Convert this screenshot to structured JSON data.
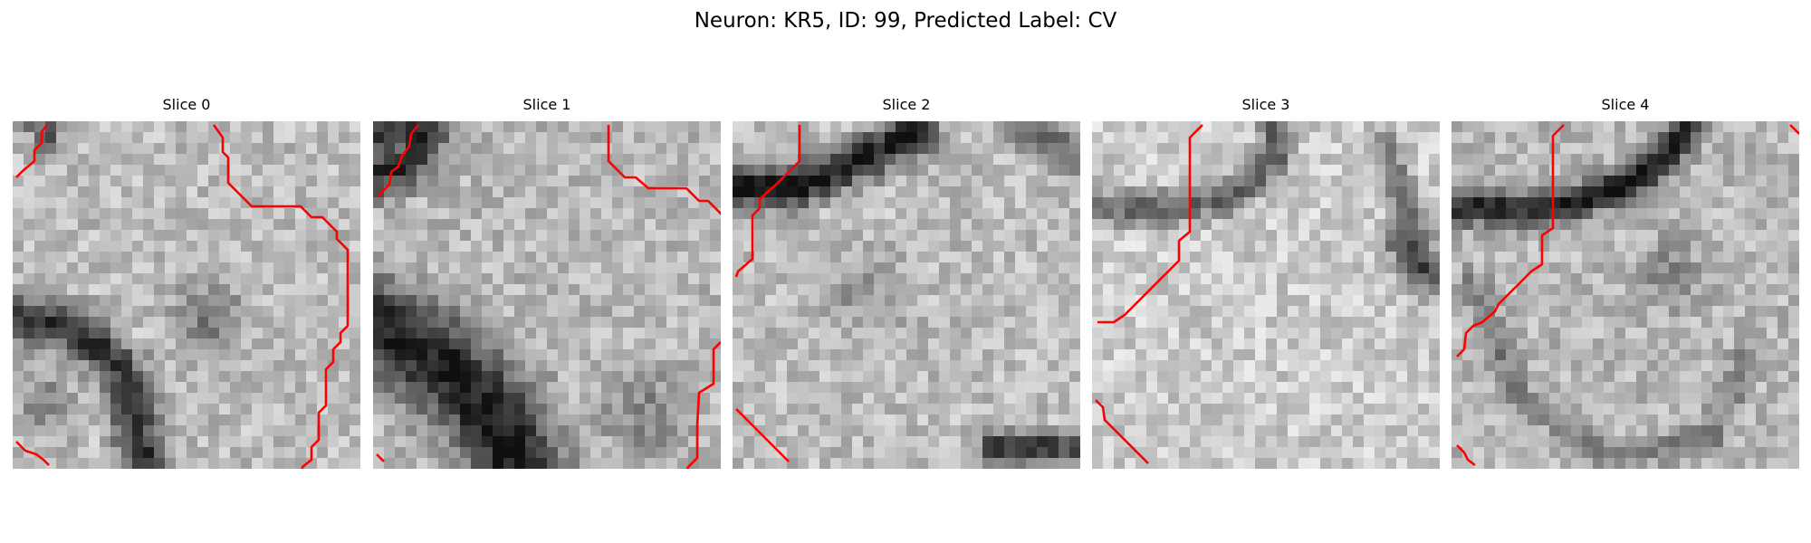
{
  "figure": {
    "title": "Neuron: KR5, ID: 99, Predicted Label: CV"
  },
  "slices": [
    {
      "label": "Slice 0"
    },
    {
      "label": "Slice 1"
    },
    {
      "label": "Slice 2"
    },
    {
      "label": "Slice 3"
    },
    {
      "label": "Slice 4"
    }
  ],
  "colors": {
    "contour": "#ff0000",
    "background": "#ffffff"
  }
}
